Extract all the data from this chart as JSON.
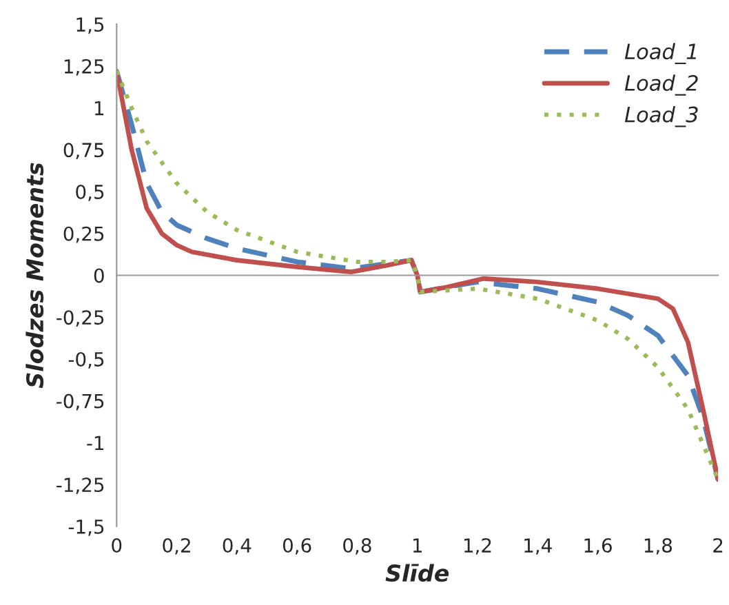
{
  "chart_data": {
    "type": "line",
    "xlabel": "Slīde",
    "ylabel": "Slodzes Moments",
    "legend": "top right",
    "xlim": [
      0,
      2
    ],
    "ylim": [
      -1.5,
      1.5
    ],
    "xticks": [
      {
        "value": 0,
        "label": "0"
      },
      {
        "value": 0.2,
        "label": "0,2"
      },
      {
        "value": 0.4,
        "label": "0,4"
      },
      {
        "value": 0.6,
        "label": "0,6"
      },
      {
        "value": 0.8,
        "label": "0,8"
      },
      {
        "value": 1,
        "label": "1"
      },
      {
        "value": 1.2,
        "label": "1,2"
      },
      {
        "value": 1.4,
        "label": "1,4"
      },
      {
        "value": 1.6,
        "label": "1,6"
      },
      {
        "value": 1.8,
        "label": "1,8"
      },
      {
        "value": 2,
        "label": "2"
      }
    ],
    "yticks": [
      {
        "value": -1.5,
        "label": "-1,5"
      },
      {
        "value": -1.25,
        "label": "-1,25"
      },
      {
        "value": -1,
        "label": "-1"
      },
      {
        "value": -0.75,
        "label": "-0,75"
      },
      {
        "value": -0.5,
        "label": "-0,5"
      },
      {
        "value": -0.25,
        "label": "-0,25"
      },
      {
        "value": 0,
        "label": "0"
      },
      {
        "value": 0.25,
        "label": "0,25"
      },
      {
        "value": 0.5,
        "label": "0,5"
      },
      {
        "value": 0.75,
        "label": "0,75"
      },
      {
        "value": 1,
        "label": "1"
      },
      {
        "value": 1.25,
        "label": "1,25"
      },
      {
        "value": 1.5,
        "label": "1,5"
      }
    ],
    "series": [
      {
        "name": "Load_1",
        "color": "#4f81bd",
        "line_style": "dashed",
        "x": [
          0,
          0.05,
          0.1,
          0.15,
          0.2,
          0.3,
          0.4,
          0.6,
          0.78,
          0.9,
          0.98,
          1.0,
          1.01,
          1.1,
          1.2,
          1.4,
          1.6,
          1.7,
          1.8,
          1.9,
          1.95,
          2
        ],
        "values": [
          1.22,
          0.9,
          0.55,
          0.38,
          0.3,
          0.22,
          0.16,
          0.08,
          0.04,
          0.07,
          0.09,
          0,
          -0.1,
          -0.07,
          -0.04,
          -0.08,
          -0.16,
          -0.24,
          -0.36,
          -0.6,
          -0.85,
          -1.22
        ]
      },
      {
        "name": "Load_2",
        "color": "#c0504d",
        "line_style": "solid",
        "x": [
          0,
          0.05,
          0.1,
          0.15,
          0.2,
          0.25,
          0.4,
          0.6,
          0.78,
          0.9,
          0.98,
          1.0,
          1.01,
          1.1,
          1.22,
          1.4,
          1.6,
          1.8,
          1.85,
          1.9,
          1.95,
          2
        ],
        "values": [
          1.22,
          0.75,
          0.4,
          0.25,
          0.18,
          0.14,
          0.09,
          0.05,
          0.02,
          0.06,
          0.09,
          0,
          -0.1,
          -0.07,
          -0.02,
          -0.04,
          -0.08,
          -0.14,
          -0.2,
          -0.4,
          -0.8,
          -1.22
        ]
      },
      {
        "name": "Load_3",
        "color": "#9bbb59",
        "line_style": "dotted",
        "x": [
          0,
          0.05,
          0.1,
          0.2,
          0.3,
          0.4,
          0.6,
          0.8,
          0.9,
          0.98,
          1.0,
          1.01,
          1.1,
          1.2,
          1.4,
          1.6,
          1.7,
          1.8,
          1.9,
          2
        ],
        "values": [
          1.22,
          1.0,
          0.8,
          0.55,
          0.38,
          0.27,
          0.14,
          0.08,
          0.08,
          0.09,
          0,
          -0.1,
          -0.09,
          -0.08,
          -0.14,
          -0.27,
          -0.38,
          -0.55,
          -0.8,
          -1.22
        ]
      }
    ]
  }
}
